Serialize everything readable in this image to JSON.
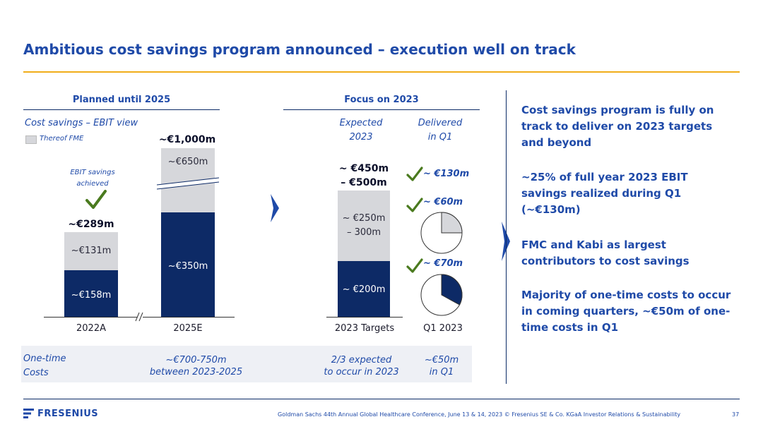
{
  "title": "Ambitious cost savings program announced – execution well on track",
  "left_section": {
    "heading": "Planned until 2025",
    "subtitle": "Cost savings – EBIT view",
    "legend_label": "Thereof FME",
    "ebit_note_line1": "EBIT savings",
    "ebit_note_line2": "achieved",
    "bar_2022": {
      "total": "~€289m",
      "light": "~€131m",
      "dark": "~€158m",
      "axis": "2022A"
    },
    "bar_2025": {
      "total": "~€1,000m",
      "light": "~€650m",
      "dark": "~€350m",
      "axis": "2025E"
    }
  },
  "middle_section": {
    "heading": "Focus on 2023",
    "col1_line1": "Expected",
    "col1_line2": "2023",
    "col2_line1": "Delivered",
    "col2_line2": "in Q1",
    "bar_target": {
      "total_line1": "~ €450m",
      "total_line2": "– €500m",
      "light_line1": "~ €250m",
      "light_line2": "– 300m",
      "dark": "~ €200m",
      "axis": "2023 Targets"
    },
    "delivered_total": "~ €130m",
    "delivered_light": "~ €60m",
    "delivered_dark": "~ €70m",
    "q1_axis": "Q1 2023",
    "pie_light_fraction": 0.25,
    "pie_dark_fraction": 0.33
  },
  "bottom_band": {
    "label_line1": "One-time",
    "label_line2": "Costs",
    "c1_line1": "~€700-750m",
    "c1_line2": "between 2023-2025",
    "c2_line1": "2/3 expected",
    "c2_line2": "to occur in 2023",
    "c3_line1": "~€50m",
    "c3_line2": "in Q1"
  },
  "right_panel": {
    "p1": "Cost savings program is fully on track to deliver on 2023 targets and beyond",
    "p2": "~25% of full year 2023 EBIT savings realized during Q1 (~€130m)",
    "p3": "FMC and Kabi as largest contributors to cost savings",
    "p4": "Majority of one-time costs to occur in coming quarters, ~€50m of one-time costs in Q1"
  },
  "footer": {
    "logo": "FRESENIUS",
    "text": "Goldman Sachs 44th Annual Global Healthcare Conference, June 13 & 14, 2023 © Fresenius SE & Co. KGaA Investor Relations & Sustainability",
    "page": "37"
  },
  "colors": {
    "dark": "#0d2a66",
    "light": "#d6d7db",
    "accent": "#f0ad1a",
    "check": "#4a7a1e"
  }
}
